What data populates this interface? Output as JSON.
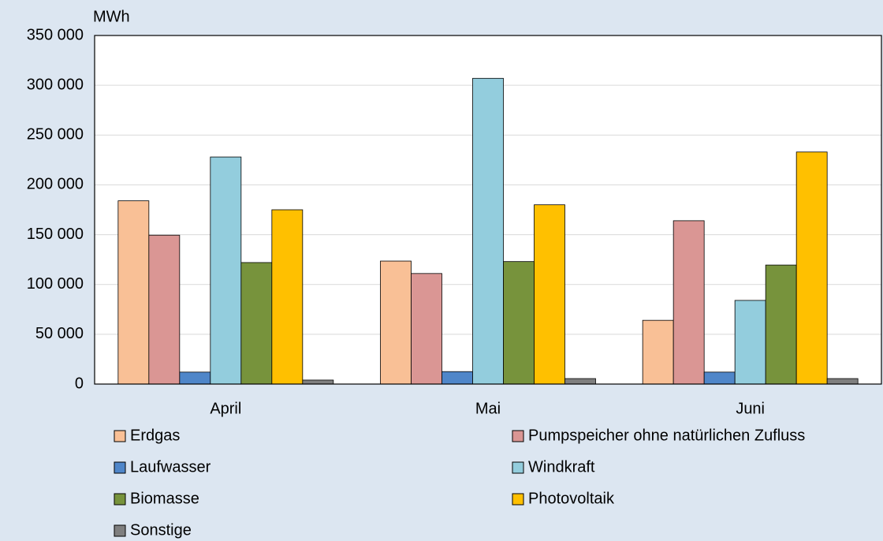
{
  "chart_data": {
    "type": "bar",
    "ylabel": "MWh",
    "categories": [
      "April",
      "Mai",
      "Juni"
    ],
    "series": [
      {
        "name": "Erdgas",
        "color": "#f9c096",
        "values": [
          184000,
          123500,
          64000
        ]
      },
      {
        "name": "Pumpspeicher ohne natürlichen Zufluss",
        "color": "#da9694",
        "values": [
          149500,
          111000,
          164000
        ]
      },
      {
        "name": "Laufwasser",
        "color": "#4f86c9",
        "values": [
          12000,
          12500,
          12000
        ]
      },
      {
        "name": "Windkraft",
        "color": "#93cddd",
        "values": [
          228000,
          307000,
          84000
        ]
      },
      {
        "name": "Biomasse",
        "color": "#77933c",
        "values": [
          122000,
          123000,
          119500
        ]
      },
      {
        "name": "Photovoltaik",
        "color": "#ffc000",
        "values": [
          175000,
          180000,
          233000
        ]
      },
      {
        "name": "Sonstige",
        "color": "#7f7f7f",
        "values": [
          4000,
          5500,
          5500
        ]
      }
    ],
    "ylim": [
      0,
      350000
    ],
    "yticks": [
      0,
      {
        "value": 50000,
        "label": "50 000"
      },
      {
        "value": 100000,
        "label": "100 000"
      },
      {
        "value": 150000,
        "label": "150 000"
      },
      {
        "value": 200000,
        "label": "200 000"
      },
      {
        "value": 250000,
        "label": "250 000"
      },
      {
        "value": 300000,
        "label": "300 000"
      },
      {
        "value": 350000,
        "label": "350 000"
      }
    ],
    "grid": true,
    "legend": "bottom"
  }
}
